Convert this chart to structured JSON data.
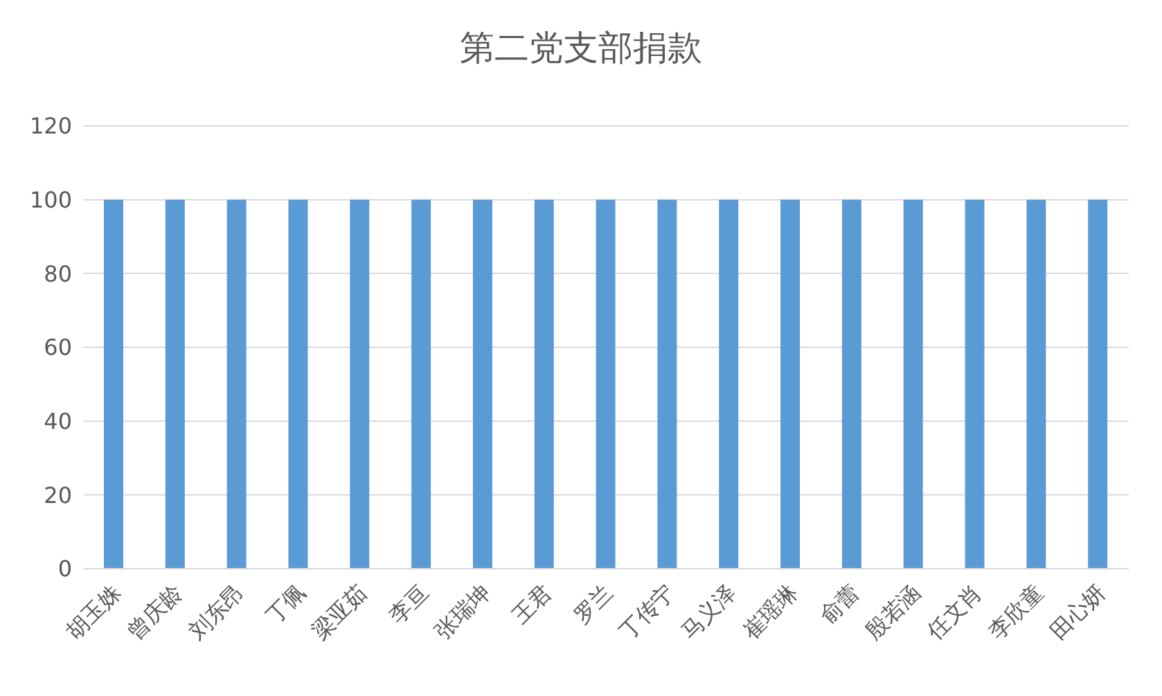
{
  "chart_data": {
    "type": "bar",
    "title": "第二党支部捐款",
    "categories": [
      "胡玉姝",
      "曾庆龄",
      "刘东昂",
      "丁佩",
      "梁亚茹",
      "李亘",
      "张瑞坤",
      "王君",
      "罗兰",
      "丁传宁",
      "马义泽",
      "崔瑶琳",
      "俞蕾",
      "殷若涵",
      "任文肖",
      "李欣童",
      "田心妍"
    ],
    "values": [
      100,
      100,
      100,
      100,
      100,
      100,
      100,
      100,
      100,
      100,
      100,
      100,
      100,
      100,
      100,
      100,
      100
    ],
    "color": "#5b9bd5",
    "ylim": [
      0,
      120
    ],
    "yticks": [
      0,
      20,
      40,
      60,
      80,
      100,
      120
    ],
    "grid": "y",
    "legend": false
  }
}
